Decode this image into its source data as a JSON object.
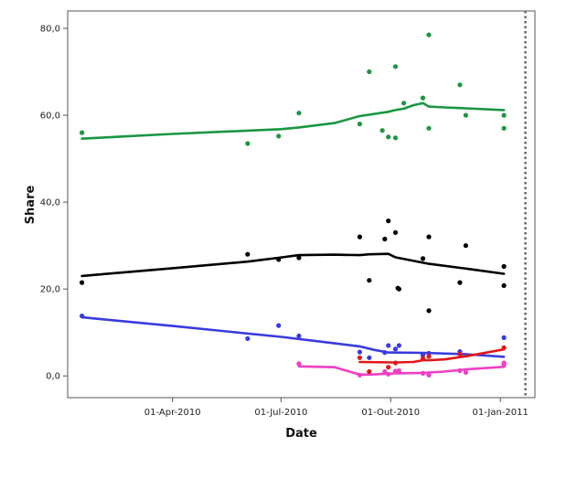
{
  "chart_data": {
    "type": "scatter",
    "title": "",
    "xlabel": "Date",
    "ylabel": "Share",
    "xlim": [
      "2010-01-03",
      "2011-01-30"
    ],
    "ylim": [
      -5,
      84
    ],
    "x_ticks": [
      {
        "date": "2010-04-01",
        "label": "01-Apr-2010"
      },
      {
        "date": "2010-07-01",
        "label": "01-Jul-2010"
      },
      {
        "date": "2010-10-01",
        "label": "01-Out-2010"
      },
      {
        "date": "2011-01-01",
        "label": "01-Jan-2011"
      }
    ],
    "y_ticks": [
      {
        "value": 0,
        "label": "0,0"
      },
      {
        "value": 20,
        "label": "20,0"
      },
      {
        "value": 40,
        "label": "40,0"
      },
      {
        "value": 60,
        "label": "60,0"
      },
      {
        "value": 80,
        "label": "80,0"
      }
    ],
    "reference_line": {
      "date": "2011-01-22",
      "style": "dotted"
    },
    "series": [
      {
        "color": "#1a9641",
        "points": [
          [
            "2010-01-15",
            56
          ],
          [
            "2010-06-03",
            53.5
          ],
          [
            "2010-06-29",
            55.2
          ],
          [
            "2010-07-16",
            60.5
          ],
          [
            "2010-09-05",
            58
          ],
          [
            "2010-09-13",
            70
          ],
          [
            "2010-09-24",
            56.5
          ],
          [
            "2010-09-29",
            55
          ],
          [
            "2010-10-05",
            54.8
          ],
          [
            "2010-10-05",
            71.2
          ],
          [
            "2010-10-12",
            62.8
          ],
          [
            "2010-10-28",
            64
          ],
          [
            "2010-11-02",
            78.5
          ],
          [
            "2010-11-02",
            57
          ],
          [
            "2010-11-28",
            67
          ],
          [
            "2010-12-03",
            60
          ],
          [
            "2011-01-04",
            60
          ],
          [
            "2011-01-04",
            57
          ]
        ],
        "trend": [
          [
            "2010-01-15",
            54.6
          ],
          [
            "2010-04-01",
            55.7
          ],
          [
            "2010-07-01",
            56.8
          ],
          [
            "2010-07-16",
            57.2
          ],
          [
            "2010-08-15",
            58.2
          ],
          [
            "2010-09-05",
            59.8
          ],
          [
            "2010-09-29",
            60.8
          ],
          [
            "2010-10-05",
            61.2
          ],
          [
            "2010-10-12",
            61.5
          ],
          [
            "2010-10-20",
            62.3
          ],
          [
            "2010-10-28",
            62.8
          ],
          [
            "2010-11-02",
            62.0
          ],
          [
            "2010-11-15",
            61.8
          ],
          [
            "2010-12-03",
            61.6
          ],
          [
            "2011-01-04",
            61.2
          ]
        ]
      },
      {
        "color": "#000000",
        "points": [
          [
            "2010-01-15",
            21.5
          ],
          [
            "2010-06-03",
            28
          ],
          [
            "2010-06-29",
            26.8
          ],
          [
            "2010-07-16",
            27.2
          ],
          [
            "2010-09-05",
            32
          ],
          [
            "2010-09-13",
            22
          ],
          [
            "2010-09-26",
            31.5
          ],
          [
            "2010-09-29",
            35.7
          ],
          [
            "2010-10-05",
            33
          ],
          [
            "2010-10-07",
            20.2
          ],
          [
            "2010-10-08",
            20
          ],
          [
            "2010-10-28",
            27
          ],
          [
            "2010-11-02",
            15
          ],
          [
            "2010-11-02",
            32
          ],
          [
            "2010-11-28",
            21.5
          ],
          [
            "2010-12-03",
            30
          ],
          [
            "2011-01-04",
            25.2
          ],
          [
            "2011-01-04",
            20.8
          ]
        ],
        "trend": [
          [
            "2010-01-15",
            23.0
          ],
          [
            "2010-04-01",
            24.8
          ],
          [
            "2010-06-03",
            26.3
          ],
          [
            "2010-06-29",
            27.2
          ],
          [
            "2010-07-16",
            27.8
          ],
          [
            "2010-08-15",
            27.9
          ],
          [
            "2010-09-05",
            27.8
          ],
          [
            "2010-09-13",
            28.0
          ],
          [
            "2010-09-29",
            28.1
          ],
          [
            "2010-10-05",
            27.3
          ],
          [
            "2010-11-02",
            25.8
          ],
          [
            "2010-12-03",
            24.7
          ],
          [
            "2011-01-04",
            23.5
          ]
        ]
      },
      {
        "color": "#3a3ae0",
        "points": [
          [
            "2010-01-15",
            13.8
          ],
          [
            "2010-06-03",
            8.6
          ],
          [
            "2010-06-29",
            11.6
          ],
          [
            "2010-07-16",
            9.2
          ],
          [
            "2010-09-05",
            5.5
          ],
          [
            "2010-09-13",
            4.2
          ],
          [
            "2010-09-26",
            5.4
          ],
          [
            "2010-09-29",
            7
          ],
          [
            "2010-10-05",
            6.2
          ],
          [
            "2010-10-08",
            7
          ],
          [
            "2010-10-28",
            4.8
          ],
          [
            "2010-11-02",
            5.2
          ],
          [
            "2010-11-28",
            5.6
          ],
          [
            "2011-01-04",
            8.8
          ]
        ],
        "trend": [
          [
            "2010-01-15",
            13.5
          ],
          [
            "2010-04-01",
            11.5
          ],
          [
            "2010-07-01",
            9.0
          ],
          [
            "2010-08-15",
            7.5
          ],
          [
            "2010-09-05",
            6.8
          ],
          [
            "2010-09-17",
            6.0
          ],
          [
            "2010-09-29",
            5.4
          ],
          [
            "2010-10-28",
            5.3
          ],
          [
            "2010-12-03",
            5.0
          ],
          [
            "2011-01-04",
            4.4
          ]
        ]
      },
      {
        "color": "#e01818",
        "points": [
          [
            "2010-09-05",
            4.2
          ],
          [
            "2010-09-13",
            1
          ],
          [
            "2010-09-29",
            2
          ],
          [
            "2010-10-05",
            3
          ],
          [
            "2010-10-28",
            4
          ],
          [
            "2010-11-02",
            4.5
          ],
          [
            "2010-11-28",
            5
          ],
          [
            "2011-01-04",
            6.5
          ]
        ],
        "trend": [
          [
            "2010-09-05",
            3.2
          ],
          [
            "2010-10-05",
            3.1
          ],
          [
            "2010-10-20",
            3.2
          ],
          [
            "2010-10-28",
            3.6
          ],
          [
            "2010-11-02",
            3.6
          ],
          [
            "2010-11-15",
            3.8
          ],
          [
            "2010-12-03",
            4.5
          ],
          [
            "2011-01-04",
            6.1
          ]
        ]
      },
      {
        "color": "#ee3fc4",
        "points": [
          [
            "2010-07-16",
            2.8
          ],
          [
            "2010-09-05",
            0.2
          ],
          [
            "2010-09-26",
            1
          ],
          [
            "2010-09-29",
            0.4
          ],
          [
            "2010-10-05",
            1.1
          ],
          [
            "2010-10-08",
            1.2
          ],
          [
            "2010-10-28",
            0.6
          ],
          [
            "2010-11-02",
            0.2
          ],
          [
            "2010-11-28",
            1.2
          ],
          [
            "2010-12-03",
            0.8
          ],
          [
            "2011-01-04",
            2.5
          ],
          [
            "2011-01-04",
            3
          ]
        ],
        "trend": [
          [
            "2010-07-16",
            2.2
          ],
          [
            "2010-08-15",
            2.0
          ],
          [
            "2010-09-05",
            0.3
          ],
          [
            "2010-09-13",
            0.3
          ],
          [
            "2010-10-05",
            0.6
          ],
          [
            "2010-10-28",
            0.7
          ],
          [
            "2010-11-15",
            1.0
          ],
          [
            "2010-12-03",
            1.5
          ],
          [
            "2011-01-04",
            2.1
          ]
        ]
      }
    ]
  }
}
